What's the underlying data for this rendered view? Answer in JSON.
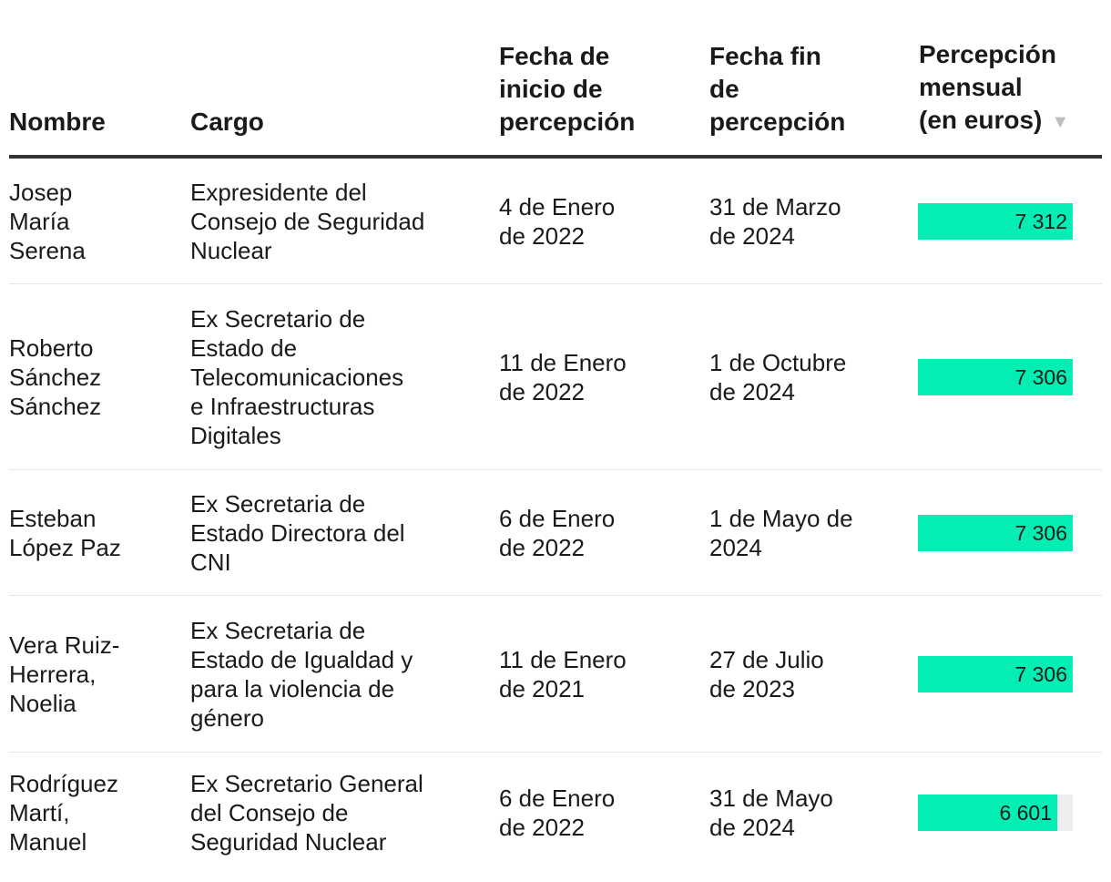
{
  "table": {
    "headers": {
      "nombre": "Nombre",
      "cargo": "Cargo",
      "inicio": "Fecha de\ninicio de\npercepción",
      "fin": "Fecha fin\nde\npercepción",
      "percepcion": "Percepción\nmensual\n(en euros)"
    },
    "sort_icon": "sort-descending-icon",
    "max_value": 7312,
    "bar_color": "#04eeb3",
    "rows": [
      {
        "nombre": "Josep\nMaría\nSerena",
        "cargo": "Expresidente del\nConsejo de Seguridad\nNuclear",
        "inicio": "4 de Enero\nde 2022",
        "fin": "31 de Marzo\nde 2024",
        "percepcion": 7312,
        "percepcion_label": "7 312"
      },
      {
        "nombre": "Roberto\nSánchez\nSánchez",
        "cargo": "Ex Secretario de\nEstado de\nTelecomunicaciones\ne Infraestructuras\nDigitales",
        "inicio": "11 de Enero\nde 2022",
        "fin": "1 de Octubre\nde 2024",
        "percepcion": 7306,
        "percepcion_label": "7 306"
      },
      {
        "nombre": "Esteban\nLópez Paz",
        "cargo": "Ex Secretaria de\nEstado Directora del\nCNI",
        "inicio": "6 de Enero\nde 2022",
        "fin": "1 de Mayo de\n2024",
        "percepcion": 7306,
        "percepcion_label": "7 306"
      },
      {
        "nombre": "Vera Ruiz-\nHerrera,\nNoelia",
        "cargo": "Ex Secretaria de\nEstado de Igualdad y\npara la violencia de\ngénero",
        "inicio": "11 de Enero\nde 2021",
        "fin": "27 de Julio\nde 2023",
        "percepcion": 7306,
        "percepcion_label": "7 306"
      },
      {
        "nombre": "Rodríguez\nMartí,\nManuel",
        "cargo": "Ex Secretario General\ndel Consejo de\nSeguridad Nuclear",
        "inicio": "6 de Enero\nde 2022",
        "fin": "31 de Mayo\nde 2024",
        "percepcion": 6601,
        "percepcion_label": "6 601"
      }
    ]
  }
}
